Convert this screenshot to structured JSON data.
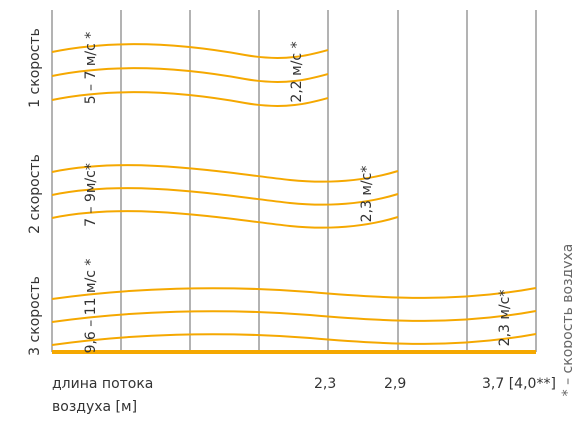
{
  "colors": {
    "curve": "#F5A800",
    "grid": "#9A9A9A",
    "baseline": "#F5A800",
    "text": "#333333"
  },
  "rows": [
    {
      "speed_label": "1 скорость",
      "range_label": "5 – 7 м/с *",
      "end_label": "2,2 м/с *"
    },
    {
      "speed_label": "2 скорость",
      "range_label": "7 – 9м/с*",
      "end_label": "2,3 м/с*"
    },
    {
      "speed_label": "3 скорость",
      "range_label": "9,6 – 11 м/с *",
      "end_label": "2,3 м/с*"
    }
  ],
  "axis": {
    "title_line1": "длина потока",
    "title_line2": "воздуха [м]",
    "ticks": [
      "2,3",
      "2,9",
      "3,7 [4,0**]"
    ]
  },
  "footnote": "* – скорость воздуха"
}
